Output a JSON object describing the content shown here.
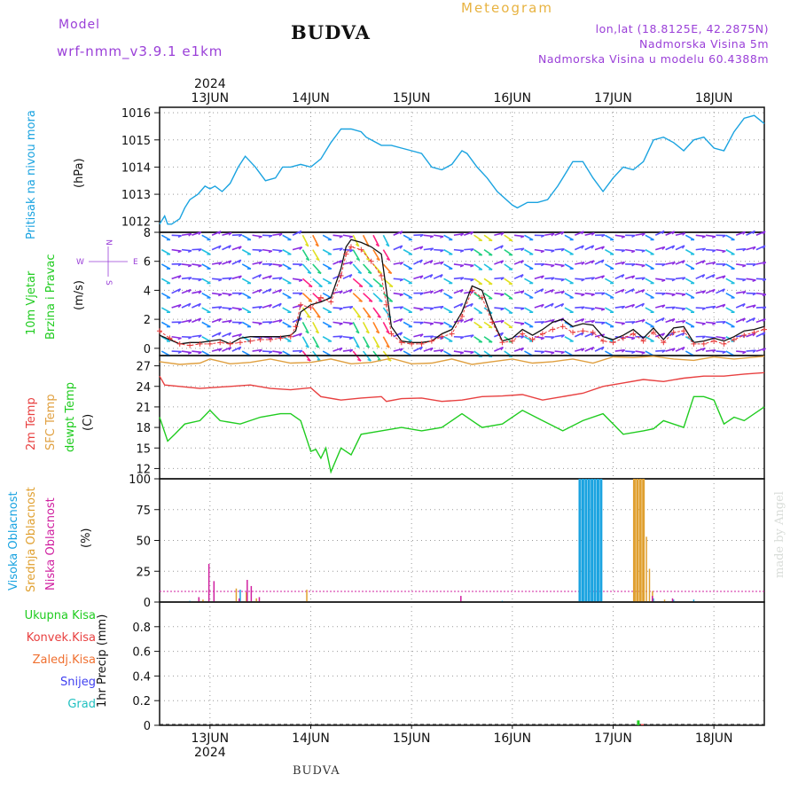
{
  "header": {
    "model_label": "Model",
    "model_name": "wrf-nmm_v3.9.1 e1km",
    "title": "BUDVA",
    "meteogram_label": "Meteogram",
    "lonlat": "lon,lat (18.8125E, 42.2875N)",
    "elevation": "Nadmorska Visina 5m",
    "model_elevation": "Nadmorska Visina u modelu 60.4388m"
  },
  "footer": {
    "station": "BUDVA",
    "credit": "made by Angel"
  },
  "time_axis": {
    "year": "2024",
    "days": [
      "13JUN",
      "14JUN",
      "15JUN",
      "16JUN",
      "17JUN",
      "18JUN"
    ]
  },
  "pressure_panel": {
    "name": "Pritisak na nivou mora",
    "unit": "(hPa)",
    "color": "#1aa3e0"
  },
  "wind_panel": {
    "name_line1": "10m Vjetar",
    "name_line2": "Brzina i Pravac",
    "unit": "(m/s)",
    "compass_w": "W",
    "compass_e": "E",
    "compass_n": "N",
    "compass_s": "S",
    "speed_color": "#111111",
    "gust_color": "#e83a3a"
  },
  "temperature_panel": {
    "label_t2m": "2m Temp",
    "label_sfc": "SFC Temp",
    "label_dewpt": "dewpt Temp",
    "unit": "(C)",
    "colors": {
      "t2m": "#e84040",
      "sfc": "#e0a040",
      "dewpt": "#20cc20"
    }
  },
  "cloud_panel": {
    "label_high": "Visoka Oblacnost",
    "label_mid": "Srednja Oblacnost",
    "label_low": "Niska Oblacnost",
    "unit": "(%)",
    "colors": {
      "high": "#1aa3e0",
      "mid": "#e0a030",
      "low": "#d020a0"
    }
  },
  "precip_panel": {
    "legend": [
      {
        "label": "Ukupna Kisa",
        "color": "#20cc20"
      },
      {
        "label": "Konvek.Kisa",
        "color": "#e84040"
      },
      {
        "label": "Zaledj.Kisa",
        "color": "#f07030"
      },
      {
        "label": "Snijeg",
        "color": "#4040f0"
      },
      {
        "label": "Grad",
        "color": "#20c0c0"
      }
    ],
    "unit": "1hr Precip (mm)"
  },
  "chart_data": [
    {
      "type": "line",
      "x_unit": "days from 13JUN 00UTC",
      "xlim": [
        -0.5,
        5.5
      ],
      "ylim": [
        1011.6,
        1016.2
      ],
      "yticks": [
        1012,
        1013,
        1014,
        1015,
        1016
      ],
      "grid": true,
      "series": [
        {
          "color": "#1aa3e0",
          "x": [
            -0.5,
            -0.45,
            -0.42,
            -0.38,
            -0.3,
            -0.25,
            -0.2,
            -0.12,
            -0.05,
            0.0,
            0.05,
            0.12,
            0.2,
            0.28,
            0.35,
            0.45,
            0.55,
            0.65,
            0.72,
            0.8,
            0.9,
            1.0,
            1.1,
            1.2,
            1.3,
            1.4,
            1.5,
            1.55,
            1.6,
            1.7,
            1.8,
            1.9,
            2.0,
            2.1,
            2.2,
            2.3,
            2.4,
            2.5,
            2.55,
            2.65,
            2.75,
            2.85,
            3.0,
            3.05,
            3.15,
            3.25,
            3.35,
            3.45,
            3.5,
            3.6,
            3.7,
            3.8,
            3.9,
            4.0,
            4.1,
            4.2,
            4.3,
            4.4,
            4.5,
            4.6,
            4.7,
            4.8,
            4.9,
            5.0,
            5.1,
            5.2,
            5.3,
            5.4,
            5.5
          ],
          "y": [
            1011.9,
            1012.2,
            1011.9,
            1011.9,
            1012.1,
            1012.5,
            1012.8,
            1013.0,
            1013.3,
            1013.2,
            1013.3,
            1013.1,
            1013.4,
            1014.0,
            1014.4,
            1014.0,
            1013.5,
            1013.6,
            1014.0,
            1014.0,
            1014.1,
            1014.0,
            1014.3,
            1014.9,
            1015.4,
            1015.4,
            1015.3,
            1015.1,
            1015.0,
            1014.8,
            1014.8,
            1014.7,
            1014.6,
            1014.5,
            1014.0,
            1013.9,
            1014.1,
            1014.6,
            1014.5,
            1014.0,
            1013.6,
            1013.1,
            1012.6,
            1012.5,
            1012.7,
            1012.7,
            1012.8,
            1013.3,
            1013.6,
            1014.2,
            1014.2,
            1013.6,
            1013.1,
            1013.6,
            1014.0,
            1013.9,
            1014.2,
            1015.0,
            1015.1,
            1014.9,
            1014.6,
            1015.0,
            1015.1,
            1014.7,
            1014.6,
            1015.3,
            1015.8,
            1015.9,
            1015.6
          ]
        }
      ]
    },
    {
      "type": "line",
      "x_unit": "days from 13JUN 00UTC",
      "xlim": [
        -0.5,
        5.5
      ],
      "ylim": [
        -0.5,
        8.0
      ],
      "yticks": [
        0,
        2,
        4,
        6,
        8
      ],
      "grid": true,
      "series": [
        {
          "color": "#111111",
          "x": [
            -0.5,
            -0.4,
            -0.3,
            -0.2,
            -0.1,
            0.0,
            0.1,
            0.2,
            0.3,
            0.4,
            0.5,
            0.6,
            0.7,
            0.8,
            0.85,
            0.9,
            1.0,
            1.1,
            1.2,
            1.3,
            1.35,
            1.4,
            1.5,
            1.6,
            1.7,
            1.75,
            1.8,
            1.9,
            2.0,
            2.1,
            2.2,
            2.3,
            2.4,
            2.5,
            2.6,
            2.7,
            2.8,
            2.9,
            3.0,
            3.1,
            3.2,
            3.3,
            3.4,
            3.5,
            3.6,
            3.7,
            3.8,
            3.9,
            4.0,
            4.1,
            4.2,
            4.3,
            4.4,
            4.5,
            4.6,
            4.7,
            4.8,
            4.9,
            5.0,
            5.1,
            5.2,
            5.3,
            5.4,
            5.5
          ],
          "y": [
            0.9,
            0.6,
            0.3,
            0.4,
            0.4,
            0.5,
            0.6,
            0.3,
            0.7,
            0.8,
            0.8,
            0.8,
            0.8,
            0.9,
            1.2,
            2.5,
            3.0,
            3.2,
            3.5,
            5.5,
            7.0,
            7.5,
            7.3,
            7.0,
            6.5,
            4.0,
            1.5,
            0.5,
            0.4,
            0.4,
            0.5,
            1.0,
            1.3,
            2.5,
            4.3,
            4.0,
            2.0,
            0.5,
            0.7,
            1.3,
            0.9,
            1.3,
            1.8,
            2.0,
            1.5,
            1.7,
            1.6,
            0.8,
            0.6,
            0.9,
            1.3,
            0.7,
            1.4,
            0.6,
            1.4,
            1.5,
            0.4,
            0.5,
            0.7,
            0.5,
            0.8,
            1.2,
            1.3,
            1.5
          ]
        },
        {
          "color": "#e83a3a",
          "x": [
            -0.5,
            -0.4,
            -0.3,
            -0.2,
            -0.1,
            0.0,
            0.1,
            0.2,
            0.3,
            0.4,
            0.5,
            0.6,
            0.7,
            0.8,
            0.85,
            0.9,
            1.0,
            1.1,
            1.2,
            1.3,
            1.35,
            1.4,
            1.5,
            1.6,
            1.7,
            1.75,
            1.8,
            1.9,
            2.0,
            2.1,
            2.2,
            2.3,
            2.4,
            2.5,
            2.6,
            2.7,
            2.8,
            2.9,
            3.0,
            3.1,
            3.2,
            3.3,
            3.4,
            3.5,
            3.6,
            3.7,
            3.8,
            3.9,
            4.0,
            4.1,
            4.2,
            4.3,
            4.4,
            4.5,
            4.6,
            4.7,
            4.8,
            4.9,
            5.0,
            5.1,
            5.2,
            5.3,
            5.4,
            5.5
          ],
          "y": [
            1.2,
            0.7,
            0.3,
            0.2,
            0.3,
            0.3,
            0.4,
            0.3,
            0.4,
            0.5,
            0.6,
            0.6,
            0.7,
            0.8,
            1.5,
            3.0,
            2.8,
            3.5,
            3.2,
            5.0,
            6.5,
            7.0,
            6.8,
            6.0,
            5.0,
            3.0,
            1.0,
            0.4,
            0.3,
            0.3,
            0.5,
            0.8,
            1.0,
            2.2,
            4.0,
            3.5,
            1.8,
            0.4,
            0.5,
            1.0,
            0.6,
            1.0,
            1.3,
            1.5,
            1.1,
            1.2,
            1.1,
            0.5,
            0.4,
            0.7,
            1.0,
            0.5,
            1.1,
            0.4,
            1.1,
            1.2,
            0.3,
            0.3,
            0.5,
            0.3,
            0.6,
            0.9,
            1.1,
            1.3
          ]
        }
      ]
    },
    {
      "type": "line",
      "x_unit": "days from 13JUN 00UTC",
      "xlim": [
        -0.5,
        5.5
      ],
      "ylim": [
        10.5,
        28.5
      ],
      "yticks": [
        12,
        15,
        18,
        21,
        24,
        27
      ],
      "grid": true,
      "series": [
        {
          "name": "SFC Temp",
          "color": "#e0a040",
          "x": [
            -0.5,
            -0.3,
            -0.1,
            0.0,
            0.2,
            0.4,
            0.6,
            0.8,
            1.0,
            1.2,
            1.4,
            1.6,
            1.8,
            2.0,
            2.2,
            2.4,
            2.6,
            2.8,
            3.0,
            3.2,
            3.4,
            3.6,
            3.8,
            4.0,
            4.2,
            4.4,
            4.6,
            4.8,
            5.0,
            5.2,
            5.5
          ],
          "y": [
            27.6,
            27.2,
            27.4,
            28.0,
            27.3,
            27.5,
            28.0,
            27.4,
            27.5,
            28.0,
            27.3,
            27.5,
            28.1,
            27.3,
            27.4,
            28.0,
            27.2,
            27.6,
            28.0,
            27.4,
            27.6,
            28.0,
            27.4,
            28.3,
            28.2,
            28.4,
            28.0,
            27.8,
            28.3,
            28.0,
            28.4
          ]
        },
        {
          "name": "2m Temp",
          "color": "#e84040",
          "x": [
            -0.5,
            -0.45,
            -0.3,
            -0.1,
            0.0,
            0.2,
            0.4,
            0.6,
            0.8,
            1.0,
            1.1,
            1.3,
            1.5,
            1.7,
            1.75,
            1.9,
            2.1,
            2.3,
            2.5,
            2.7,
            2.9,
            3.1,
            3.3,
            3.5,
            3.7,
            3.9,
            4.1,
            4.3,
            4.5,
            4.7,
            4.9,
            5.1,
            5.3,
            5.5
          ],
          "y": [
            25.5,
            24.2,
            24.0,
            23.7,
            23.8,
            24.0,
            24.2,
            23.7,
            23.5,
            23.8,
            22.5,
            22.0,
            22.3,
            22.5,
            21.8,
            22.2,
            22.3,
            21.8,
            22.0,
            22.5,
            22.6,
            22.8,
            22.0,
            22.5,
            23.0,
            24.0,
            24.5,
            25.0,
            24.7,
            25.2,
            25.5,
            25.5,
            25.8,
            26.0
          ]
        },
        {
          "name": "dewpt Temp",
          "color": "#20cc20",
          "x": [
            -0.5,
            -0.42,
            -0.35,
            -0.25,
            -0.1,
            0.0,
            0.1,
            0.3,
            0.5,
            0.7,
            0.8,
            0.9,
            1.0,
            1.05,
            1.1,
            1.15,
            1.2,
            1.3,
            1.4,
            1.5,
            1.7,
            1.9,
            2.1,
            2.3,
            2.5,
            2.6,
            2.7,
            2.9,
            3.1,
            3.3,
            3.5,
            3.7,
            3.9,
            4.1,
            4.3,
            4.4,
            4.5,
            4.7,
            4.8,
            4.9,
            5.0,
            5.1,
            5.2,
            5.3,
            5.5
          ],
          "y": [
            19.5,
            16.0,
            17.0,
            18.5,
            19.0,
            20.5,
            19.0,
            18.5,
            19.5,
            20.0,
            20.0,
            19.0,
            14.5,
            14.8,
            13.5,
            15.0,
            11.5,
            15.0,
            14.0,
            17.0,
            17.5,
            18.0,
            17.5,
            18.0,
            20.0,
            19.0,
            18.0,
            18.5,
            20.5,
            19.0,
            17.5,
            19.0,
            20.0,
            17.0,
            17.5,
            17.8,
            19.0,
            18.0,
            22.5,
            22.5,
            22.0,
            18.5,
            19.5,
            19.0,
            21.0
          ]
        }
      ]
    },
    {
      "type": "bar",
      "x_unit": "days from 13JUN 00UTC",
      "xlim": [
        -0.5,
        5.5
      ],
      "ylim": [
        0,
        100
      ],
      "yticks": [
        0,
        25,
        50,
        75,
        100
      ],
      "grid": true,
      "series": [
        {
          "name": "Visoka Oblacnost",
          "color": "#1aa3e0",
          "x": [
            -0.2,
            0.3,
            2.9,
            3.67,
            3.7,
            3.73,
            3.76,
            3.79,
            3.82,
            3.85,
            3.88,
            4.4,
            4.6,
            4.8
          ],
          "values": [
            1,
            10,
            1,
            100,
            100,
            100,
            100,
            100,
            100,
            100,
            100,
            3,
            2,
            2
          ]
        },
        {
          "name": "Srednja Oblacnost",
          "color": "#e0a030",
          "x": [
            -0.12,
            -0.08,
            0.25,
            0.35,
            0.45,
            0.95,
            4.2,
            4.23,
            4.26,
            4.29,
            4.32,
            4.35,
            4.38,
            4.5
          ],
          "values": [
            3,
            2,
            11,
            8,
            3,
            10,
            100,
            100,
            100,
            100,
            53,
            27,
            9,
            2
          ]
        },
        {
          "name": "Niska Oblacnost",
          "color": "#d020a0",
          "x": [
            -0.1,
            0.0,
            0.05,
            0.3,
            0.38,
            0.42,
            0.5,
            2.5,
            4.4,
            4.6
          ],
          "values": [
            4,
            31,
            17,
            3,
            18,
            13,
            4,
            5,
            5,
            3
          ]
        }
      ]
    },
    {
      "type": "bar",
      "x_unit": "days from 13JUN 00UTC",
      "xlim": [
        -0.5,
        5.5
      ],
      "ylim": [
        0,
        1.0
      ],
      "yticks": [
        0,
        0.2,
        0.4,
        0.6,
        0.8
      ],
      "grid": true,
      "series": [
        {
          "name": "Ukupna Kisa",
          "color": "#20cc20",
          "x": [
            4.25
          ],
          "values": [
            0.04
          ]
        },
        {
          "name": "Konvek.Kisa",
          "color": "#e84040",
          "x": [
            4.29
          ],
          "values": [
            0.01
          ]
        }
      ]
    }
  ]
}
